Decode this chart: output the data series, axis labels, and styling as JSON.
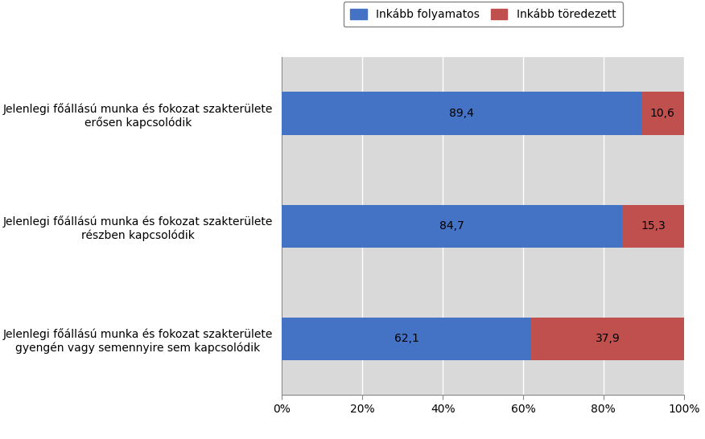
{
  "categories": [
    "Jelenlegi főállású munka és fokozat szakterülete\nerősen kapcsolódik",
    "Jelenlegi főállású munka és fokozat szakterülete\nrészben kapcsolódik",
    "Jelenlegi főállású munka és fokozat szakterülete\ngyengén vagy semennyire sem kapcsolódik"
  ],
  "folyamatos": [
    89.4,
    84.7,
    62.1
  ],
  "toredezett": [
    10.6,
    15.3,
    37.9
  ],
  "color_folyamatos": "#4472C4",
  "color_toredezett": "#C0504D",
  "color_background": "#D9D9D9",
  "color_fig": "#FFFFFF",
  "legend_folyamatos": "Inkább folyamatos",
  "legend_toredezett": "Inkább töredezett",
  "bar_height": 0.38,
  "xlim": [
    0,
    100
  ],
  "xticks": [
    0,
    20,
    40,
    60,
    80,
    100
  ],
  "xtick_labels": [
    "0%",
    "20%",
    "40%",
    "60%",
    "80%",
    "100%"
  ],
  "label_fontsize": 10,
  "tick_fontsize": 10,
  "legend_fontsize": 10,
  "value_fontsize": 10,
  "value_color_dark": "#000000",
  "value_color_light": "#FFFFFF"
}
